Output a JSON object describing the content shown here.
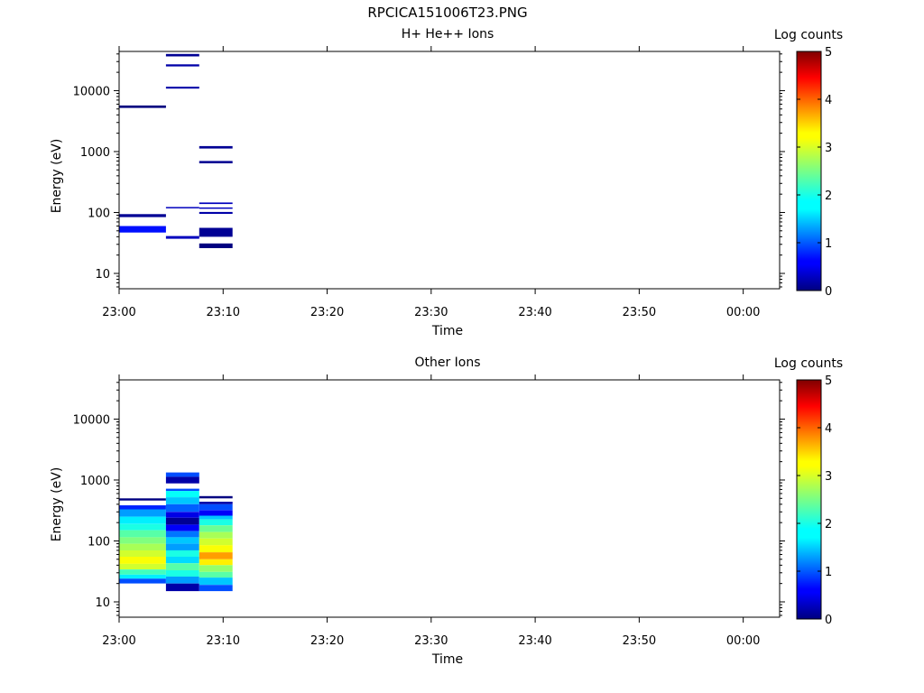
{
  "title": "RPCICA151006T23.PNG",
  "colorbar": {
    "label": "Log counts",
    "ticks": [
      "0",
      "1",
      "2",
      "3",
      "4",
      "5"
    ],
    "min": 0,
    "max": 5
  },
  "chart_data": [
    {
      "type": "heatmap",
      "title": "H+ He++ Ions",
      "xlabel": "Time",
      "ylabel": "Energy (eV)",
      "x_ticks": [
        "23:00",
        "23:10",
        "23:20",
        "23:30",
        "23:40",
        "23:50",
        "00:00"
      ],
      "x_tick_minutes": [
        0,
        10,
        20,
        30,
        40,
        50,
        60
      ],
      "xlim_minutes": [
        0,
        63.5
      ],
      "y_scale": "log",
      "ylim": [
        5.6,
        44000
      ],
      "y_ticks": [
        "10",
        "100",
        "1000",
        "10000"
      ],
      "y_tick_values": [
        10,
        100,
        1000,
        10000
      ],
      "color_scale": "Log counts",
      "columns": [
        {
          "start_min": 0.0,
          "end_min": 4.5,
          "bins": [
            {
              "e_lo": 5200,
              "e_hi": 5700,
              "v": 0.0
            },
            {
              "e_lo": 84,
              "e_hi": 94,
              "v": 0.1
            },
            {
              "e_lo": 47,
              "e_hi": 60,
              "v": 0.7
            }
          ]
        },
        {
          "start_min": 4.5,
          "end_min": 7.7,
          "bins": [
            {
              "e_lo": 36500,
              "e_hi": 40000,
              "v": 0.1
            },
            {
              "e_lo": 25000,
              "e_hi": 27000,
              "v": 0.2
            },
            {
              "e_lo": 10800,
              "e_hi": 11600,
              "v": 0.2
            },
            {
              "e_lo": 117,
              "e_hi": 123,
              "v": 0.3
            },
            {
              "e_lo": 37,
              "e_hi": 41,
              "v": 0.3
            }
          ]
        },
        {
          "start_min": 7.7,
          "end_min": 10.9,
          "bins": [
            {
              "e_lo": 1120,
              "e_hi": 1230,
              "v": 0.1
            },
            {
              "e_lo": 640,
              "e_hi": 700,
              "v": 0.1
            },
            {
              "e_lo": 138,
              "e_hi": 146,
              "v": 0.3
            },
            {
              "e_lo": 115,
              "e_hi": 121,
              "v": 0.3
            },
            {
              "e_lo": 95,
              "e_hi": 102,
              "v": 0.2
            },
            {
              "e_lo": 40,
              "e_hi": 56,
              "v": 0.1
            },
            {
              "e_lo": 26,
              "e_hi": 31,
              "v": 0.0
            }
          ]
        }
      ]
    },
    {
      "type": "heatmap",
      "title": "Other Ions",
      "xlabel": "Time",
      "ylabel": "Energy (eV)",
      "x_ticks": [
        "23:00",
        "23:10",
        "23:20",
        "23:30",
        "23:40",
        "23:50",
        "00:00"
      ],
      "x_tick_minutes": [
        0,
        10,
        20,
        30,
        40,
        50,
        60
      ],
      "xlim_minutes": [
        0,
        63.5
      ],
      "y_scale": "log",
      "ylim": [
        5.6,
        44000
      ],
      "y_ticks": [
        "10",
        "100",
        "1000",
        "10000"
      ],
      "y_tick_values": [
        10,
        100,
        1000,
        10000
      ],
      "color_scale": "Log counts",
      "columns": [
        {
          "start_min": 0.0,
          "end_min": 4.5,
          "bins": [
            {
              "e_lo": 460,
              "e_hi": 500,
              "v": 0.0
            },
            {
              "e_lo": 330,
              "e_hi": 385,
              "v": 0.8
            },
            {
              "e_lo": 250,
              "e_hi": 330,
              "v": 1.4
            },
            {
              "e_lo": 190,
              "e_hi": 250,
              "v": 1.8
            },
            {
              "e_lo": 150,
              "e_hi": 190,
              "v": 2.0
            },
            {
              "e_lo": 115,
              "e_hi": 150,
              "v": 2.3
            },
            {
              "e_lo": 90,
              "e_hi": 115,
              "v": 2.5
            },
            {
              "e_lo": 70,
              "e_hi": 90,
              "v": 2.7
            },
            {
              "e_lo": 55,
              "e_hi": 70,
              "v": 2.9
            },
            {
              "e_lo": 42,
              "e_hi": 55,
              "v": 3.1
            },
            {
              "e_lo": 34,
              "e_hi": 42,
              "v": 2.9
            },
            {
              "e_lo": 28,
              "e_hi": 34,
              "v": 2.2
            },
            {
              "e_lo": 24,
              "e_hi": 28,
              "v": 1.8
            },
            {
              "e_lo": 20,
              "e_hi": 24,
              "v": 1.0
            }
          ]
        },
        {
          "start_min": 4.5,
          "end_min": 7.7,
          "bins": [
            {
              "e_lo": 1130,
              "e_hi": 1330,
              "v": 1.0
            },
            {
              "e_lo": 880,
              "e_hi": 1130,
              "v": 0.2
            },
            {
              "e_lo": 660,
              "e_hi": 720,
              "v": 1.0
            },
            {
              "e_lo": 520,
              "e_hi": 660,
              "v": 1.9
            },
            {
              "e_lo": 400,
              "e_hi": 520,
              "v": 1.6
            },
            {
              "e_lo": 300,
              "e_hi": 400,
              "v": 1.1
            },
            {
              "e_lo": 240,
              "e_hi": 300,
              "v": 0.5
            },
            {
              "e_lo": 185,
              "e_hi": 240,
              "v": 0.1
            },
            {
              "e_lo": 145,
              "e_hi": 185,
              "v": 0.6
            },
            {
              "e_lo": 115,
              "e_hi": 145,
              "v": 1.2
            },
            {
              "e_lo": 90,
              "e_hi": 115,
              "v": 1.6
            },
            {
              "e_lo": 70,
              "e_hi": 90,
              "v": 1.4
            },
            {
              "e_lo": 55,
              "e_hi": 70,
              "v": 2.0
            },
            {
              "e_lo": 43,
              "e_hi": 55,
              "v": 1.7
            },
            {
              "e_lo": 33,
              "e_hi": 43,
              "v": 2.3
            },
            {
              "e_lo": 26,
              "e_hi": 33,
              "v": 2.0
            },
            {
              "e_lo": 20,
              "e_hi": 26,
              "v": 1.4
            },
            {
              "e_lo": 15,
              "e_hi": 20,
              "v": 0.2
            }
          ]
        },
        {
          "start_min": 7.7,
          "end_min": 10.9,
          "bins": [
            {
              "e_lo": 500,
              "e_hi": 545,
              "v": 0.0
            },
            {
              "e_lo": 400,
              "e_hi": 440,
              "v": 0.2
            },
            {
              "e_lo": 320,
              "e_hi": 400,
              "v": 1.0
            },
            {
              "e_lo": 260,
              "e_hi": 320,
              "v": 0.6
            },
            {
              "e_lo": 225,
              "e_hi": 260,
              "v": 1.6
            },
            {
              "e_lo": 180,
              "e_hi": 225,
              "v": 2.0
            },
            {
              "e_lo": 140,
              "e_hi": 180,
              "v": 2.4
            },
            {
              "e_lo": 110,
              "e_hi": 140,
              "v": 2.7
            },
            {
              "e_lo": 85,
              "e_hi": 110,
              "v": 2.9
            },
            {
              "e_lo": 65,
              "e_hi": 85,
              "v": 3.1
            },
            {
              "e_lo": 50,
              "e_hi": 65,
              "v": 3.6
            },
            {
              "e_lo": 40,
              "e_hi": 50,
              "v": 3.2
            },
            {
              "e_lo": 31,
              "e_hi": 40,
              "v": 2.6
            },
            {
              "e_lo": 25,
              "e_hi": 31,
              "v": 2.3
            },
            {
              "e_lo": 19,
              "e_hi": 25,
              "v": 1.6
            },
            {
              "e_lo": 15,
              "e_hi": 19,
              "v": 1.0
            }
          ]
        }
      ]
    }
  ]
}
